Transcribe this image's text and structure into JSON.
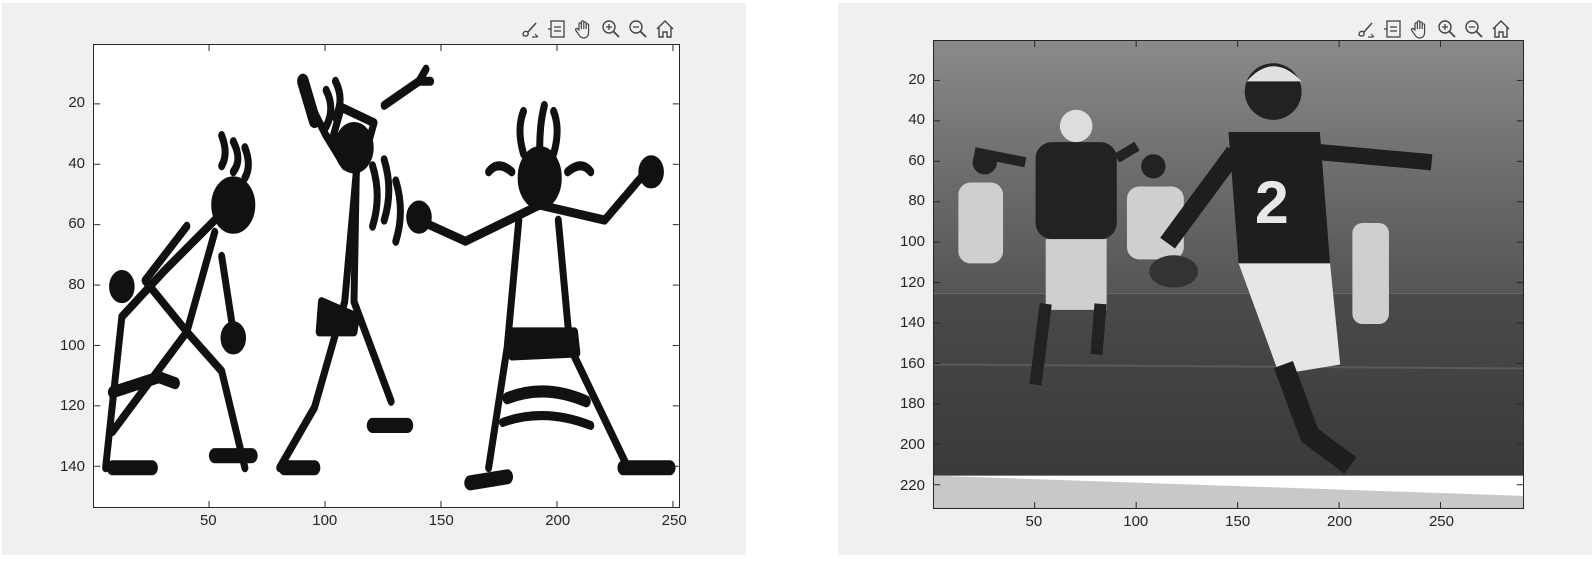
{
  "figures": [
    {
      "id": "fig1",
      "toolbar": [
        {
          "name": "brush-icon"
        },
        {
          "name": "data-tips-icon"
        },
        {
          "name": "pan-hand-icon"
        },
        {
          "name": "zoom-in-icon"
        },
        {
          "name": "zoom-out-icon"
        },
        {
          "name": "home-icon"
        }
      ],
      "image_description_hidden": true,
      "yticks": [
        "20",
        "40",
        "60",
        "80",
        "100",
        "120",
        "140"
      ],
      "xticks": [
        "50",
        "100",
        "150",
        "200",
        "250"
      ],
      "xlim": [
        1,
        252
      ],
      "ylim": [
        1,
        153
      ],
      "ytick_values": [
        20,
        40,
        60,
        80,
        100,
        120,
        140
      ],
      "xtick_values": [
        50,
        100,
        150,
        200,
        250
      ]
    },
    {
      "id": "fig2",
      "toolbar": [
        {
          "name": "brush-icon"
        },
        {
          "name": "data-tips-icon"
        },
        {
          "name": "pan-hand-icon"
        },
        {
          "name": "zoom-in-icon"
        },
        {
          "name": "zoom-out-icon"
        },
        {
          "name": "home-icon"
        }
      ],
      "yticks": [
        "20",
        "40",
        "60",
        "80",
        "100",
        "120",
        "140",
        "160",
        "180",
        "200",
        "220"
      ],
      "xticks": [
        "50",
        "100",
        "150",
        "200",
        "250"
      ],
      "xlim": [
        1,
        290
      ],
      "ylim": [
        1,
        231
      ],
      "ytick_values": [
        20,
        40,
        60,
        80,
        100,
        120,
        140,
        160,
        180,
        200,
        220
      ],
      "xtick_values": [
        50,
        100,
        150,
        200,
        250
      ]
    }
  ],
  "colors": {
    "figure_bg": "#f0f0f0",
    "axes_edge": "#262626"
  }
}
